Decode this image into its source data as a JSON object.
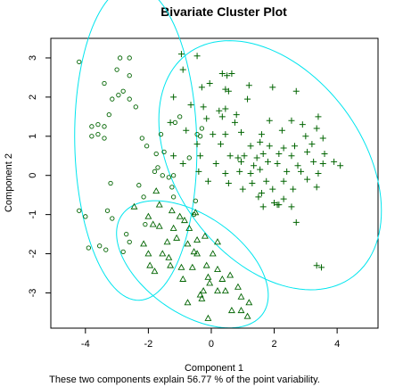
{
  "chart_data": {
    "type": "scatter",
    "title": "Bivariate Cluster Plot",
    "xlabel": "Component 1",
    "ylabel": "Component 2",
    "subtitle": "These two components explain 56.77 % of the point variability.",
    "xlim": [
      -5.1,
      5.3
    ],
    "ylim": [
      -3.9,
      3.5
    ],
    "x_ticks": [
      -4,
      -2,
      0,
      2,
      4
    ],
    "y_ticks": [
      -3,
      -2,
      -1,
      0,
      1,
      2,
      3
    ],
    "grid": false,
    "colors": {
      "points": "#006400",
      "ellipses": "#00e5ee",
      "frame": "#000000"
    },
    "series": [
      {
        "marker": "circle",
        "points": [
          [
            -4.2,
            2.9
          ],
          [
            -2.9,
            3.0
          ],
          [
            -2.6,
            3.0
          ],
          [
            -3.0,
            2.7
          ],
          [
            -2.6,
            2.55
          ],
          [
            -3.4,
            2.35
          ],
          [
            -2.8,
            2.15
          ],
          [
            -2.95,
            2.05
          ],
          [
            -3.15,
            1.95
          ],
          [
            -2.6,
            1.95
          ],
          [
            -2.4,
            1.75
          ],
          [
            -3.25,
            1.55
          ],
          [
            -3.6,
            1.3
          ],
          [
            -3.8,
            1.25
          ],
          [
            -3.4,
            1.25
          ],
          [
            -3.6,
            1.05
          ],
          [
            -3.8,
            1.0
          ],
          [
            -3.4,
            0.95
          ],
          [
            -2.2,
            0.95
          ],
          [
            -1.6,
            1.05
          ],
          [
            -2.05,
            0.75
          ],
          [
            -1.5,
            0.6
          ],
          [
            -1.75,
            0.55
          ],
          [
            -1.7,
            0.2
          ],
          [
            -1.8,
            0.1
          ],
          [
            -1.55,
            0.0
          ],
          [
            -1.35,
            -0.05
          ],
          [
            -1.2,
            0.0
          ],
          [
            -2.3,
            -0.25
          ],
          [
            -3.2,
            -0.2
          ],
          [
            -3.3,
            -0.9
          ],
          [
            -4.2,
            -0.9
          ],
          [
            -4.0,
            -1.05
          ],
          [
            -3.15,
            -1.1
          ],
          [
            -2.7,
            -1.5
          ],
          [
            -2.6,
            -1.7
          ],
          [
            -3.55,
            -1.8
          ],
          [
            -3.9,
            -1.85
          ],
          [
            -2.8,
            -1.95
          ],
          [
            -3.35,
            -1.9
          ],
          [
            -1.25,
            -0.3
          ],
          [
            -0.55,
            -1.0
          ],
          [
            -0.5,
            -0.65
          ],
          [
            -0.7,
            0.45
          ],
          [
            -0.45,
            1.05
          ],
          [
            -1.0,
            1.5
          ],
          [
            -1.15,
            1.35
          ],
          [
            -0.3,
            1.2
          ],
          [
            -0.35,
            1.0
          ],
          [
            -2.1,
            -1.25
          ],
          [
            -2.15,
            -0.55
          ],
          [
            -1.2,
            -0.55
          ]
        ]
      },
      {
        "marker": "plus",
        "points": [
          [
            -0.95,
            3.1
          ],
          [
            -0.45,
            3.05
          ],
          [
            -0.9,
            2.7
          ],
          [
            0.35,
            2.6
          ],
          [
            0.5,
            2.55
          ],
          [
            0.65,
            2.6
          ],
          [
            -0.3,
            2.25
          ],
          [
            -0.05,
            2.35
          ],
          [
            0.45,
            2.2
          ],
          [
            0.55,
            2.15
          ],
          [
            1.2,
            2.3
          ],
          [
            1.95,
            2.25
          ],
          [
            2.7,
            2.15
          ],
          [
            -1.2,
            2.0
          ],
          [
            -0.65,
            1.8
          ],
          [
            -0.25,
            1.75
          ],
          [
            0.25,
            1.65
          ],
          [
            0.45,
            1.7
          ],
          [
            1.15,
            1.95
          ],
          [
            0.8,
            1.55
          ],
          [
            0.35,
            1.5
          ],
          [
            -0.15,
            1.45
          ],
          [
            0.75,
            1.35
          ],
          [
            1.85,
            1.4
          ],
          [
            2.55,
            1.4
          ],
          [
            2.9,
            1.3
          ],
          [
            3.4,
            1.5
          ],
          [
            3.35,
            1.2
          ],
          [
            -1.3,
            1.35
          ],
          [
            -0.8,
            1.15
          ],
          [
            0.05,
            1.05
          ],
          [
            0.45,
            1.05
          ],
          [
            0.95,
            1.1
          ],
          [
            1.6,
            1.05
          ],
          [
            2.25,
            1.15
          ],
          [
            3.0,
            1.0
          ],
          [
            3.55,
            0.95
          ],
          [
            -0.45,
            0.8
          ],
          [
            0.3,
            0.8
          ],
          [
            1.25,
            0.75
          ],
          [
            1.55,
            0.85
          ],
          [
            1.85,
            0.75
          ],
          [
            2.3,
            0.7
          ],
          [
            2.65,
            0.75
          ],
          [
            3.2,
            0.8
          ],
          [
            -1.2,
            0.5
          ],
          [
            -0.35,
            0.5
          ],
          [
            0.6,
            0.5
          ],
          [
            0.85,
            0.45
          ],
          [
            1.05,
            0.5
          ],
          [
            1.45,
            0.45
          ],
          [
            1.65,
            0.55
          ],
          [
            2.15,
            0.55
          ],
          [
            2.55,
            0.5
          ],
          [
            3.05,
            0.6
          ],
          [
            3.6,
            0.55
          ],
          [
            3.9,
            0.35
          ],
          [
            -0.9,
            0.3
          ],
          [
            0.15,
            0.3
          ],
          [
            0.95,
            0.35
          ],
          [
            1.35,
            0.25
          ],
          [
            1.8,
            0.35
          ],
          [
            2.1,
            0.3
          ],
          [
            2.75,
            0.25
          ],
          [
            3.25,
            0.35
          ],
          [
            3.55,
            0.3
          ],
          [
            4.1,
            0.25
          ],
          [
            -0.4,
            0.1
          ],
          [
            0.45,
            0.05
          ],
          [
            0.9,
            0.1
          ],
          [
            1.25,
            0.05
          ],
          [
            1.55,
            0.15
          ],
          [
            2.4,
            0.1
          ],
          [
            2.85,
            0.1
          ],
          [
            3.4,
            0.05
          ],
          [
            -0.1,
            -0.15
          ],
          [
            0.55,
            -0.2
          ],
          [
            1.3,
            -0.2
          ],
          [
            1.75,
            -0.15
          ],
          [
            2.3,
            -0.15
          ],
          [
            3.05,
            -0.1
          ],
          [
            1.0,
            -0.35
          ],
          [
            1.95,
            -0.35
          ],
          [
            2.6,
            -0.35
          ],
          [
            3.35,
            -0.3
          ],
          [
            2.0,
            -0.7
          ],
          [
            2.1,
            -0.75
          ],
          [
            2.3,
            -0.6
          ],
          [
            2.55,
            -0.8
          ],
          [
            1.5,
            -0.55
          ],
          [
            1.6,
            -0.45
          ],
          [
            1.65,
            -0.8
          ],
          [
            2.7,
            -1.2
          ],
          [
            2.15,
            -0.75
          ],
          [
            3.35,
            -2.3
          ],
          [
            3.5,
            -2.35
          ]
        ]
      },
      {
        "marker": "triangle",
        "points": [
          [
            -2.45,
            -0.8
          ],
          [
            -1.75,
            -0.4
          ],
          [
            -1.65,
            -0.75
          ],
          [
            -2.0,
            -1.05
          ],
          [
            -1.85,
            -1.25
          ],
          [
            -1.65,
            -1.3
          ],
          [
            -1.25,
            -0.9
          ],
          [
            -1.2,
            -1.35
          ],
          [
            -1.1,
            -1.6
          ],
          [
            -0.85,
            -1.15
          ],
          [
            -0.7,
            -1.35
          ],
          [
            -0.75,
            -1.75
          ],
          [
            -0.55,
            -1.95
          ],
          [
            -1.4,
            -1.7
          ],
          [
            -1.55,
            -2.0
          ],
          [
            -2.15,
            -1.75
          ],
          [
            -2.0,
            -2.0
          ],
          [
            -1.95,
            -2.3
          ],
          [
            -1.35,
            -2.1
          ],
          [
            -0.95,
            -2.35
          ],
          [
            -0.9,
            -2.65
          ],
          [
            -0.6,
            -2.35
          ],
          [
            -0.45,
            -2.0
          ],
          [
            -0.2,
            -1.55
          ],
          [
            0.2,
            -1.7
          ],
          [
            0.05,
            -2.0
          ],
          [
            -0.15,
            -2.3
          ],
          [
            -0.1,
            -2.6
          ],
          [
            -0.25,
            -2.95
          ],
          [
            -0.35,
            -3.05
          ],
          [
            0.2,
            -2.4
          ],
          [
            0.35,
            -2.65
          ],
          [
            0.6,
            -2.55
          ],
          [
            0.85,
            -2.85
          ],
          [
            0.95,
            -3.1
          ],
          [
            1.2,
            -3.25
          ],
          [
            -0.05,
            -2.75
          ],
          [
            -0.75,
            -3.25
          ],
          [
            -0.3,
            -3.15
          ],
          [
            0.95,
            -3.45
          ],
          [
            -0.1,
            -3.65
          ],
          [
            0.65,
            -3.45
          ],
          [
            1.15,
            -3.6
          ],
          [
            -1.0,
            -1.05
          ],
          [
            -0.5,
            -0.95
          ],
          [
            -0.45,
            -1.65
          ],
          [
            -1.8,
            -2.45
          ],
          [
            -1.3,
            -2.3
          ],
          [
            0.2,
            -2.95
          ],
          [
            0.45,
            -2.95
          ]
        ]
      }
    ],
    "ellipses": [
      {
        "cx": -2.4,
        "cy": 0.83,
        "rx": 4.02,
        "ry": 1.94,
        "angle_deg": 91.6
      },
      {
        "cx": 1.87,
        "cy": 0.26,
        "rx": 3.95,
        "ry": 2.65,
        "angle_deg": 143.1
      },
      {
        "cx": -0.6,
        "cy": -2.27,
        "rx": 2.59,
        "ry": 1.32,
        "angle_deg": 154.9
      }
    ]
  }
}
